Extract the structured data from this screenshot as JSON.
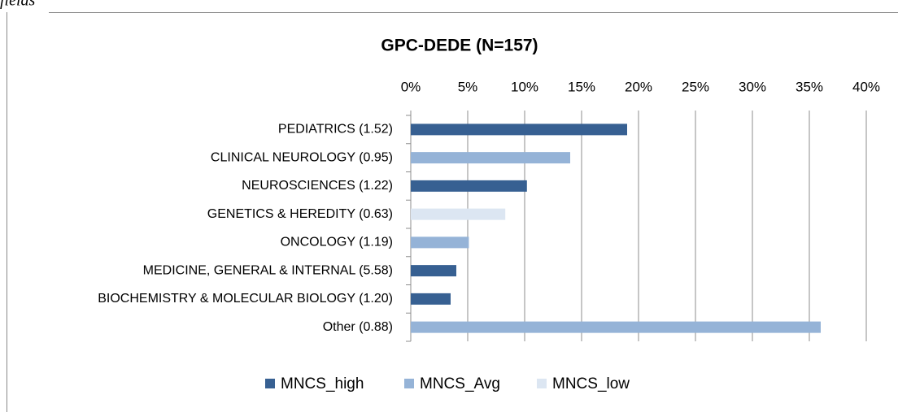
{
  "caption": "fields",
  "chart_data": {
    "type": "hbar",
    "title": "GPC-DEDE (N=157)",
    "categories": [
      "PEDIATRICS (1.52)",
      "CLINICAL NEUROLOGY (0.95)",
      "NEUROSCIENCES (1.22)",
      "GENETICS & HEREDITY (0.63)",
      "ONCOLOGY (1.19)",
      "MEDICINE, GENERAL & INTERNAL (5.58)",
      "BIOCHEMISTRY & MOLECULAR BIOLOGY (1.20)",
      "Other (0.88)"
    ],
    "series": [
      {
        "name": "MNCS_high",
        "color": "#376092",
        "values": [
          19,
          null,
          10.2,
          null,
          null,
          4,
          3.5,
          null
        ]
      },
      {
        "name": "MNCS_Avg",
        "color": "#95b3d7",
        "values": [
          null,
          14,
          null,
          null,
          5.1,
          null,
          null,
          36
        ]
      },
      {
        "name": "MNCS_low",
        "color": "#dce6f2",
        "values": [
          null,
          null,
          null,
          8.3,
          null,
          null,
          null,
          null
        ]
      }
    ],
    "xlim": [
      0,
      40
    ],
    "xticks": [
      {
        "value": 0,
        "label": "0%"
      },
      {
        "value": 5,
        "label": "5%"
      },
      {
        "value": 10,
        "label": "10%"
      },
      {
        "value": 15,
        "label": "15%"
      },
      {
        "value": 20,
        "label": "20%"
      },
      {
        "value": 25,
        "label": "25%"
      },
      {
        "value": 30,
        "label": "30%"
      },
      {
        "value": 35,
        "label": "35%"
      },
      {
        "value": 40,
        "label": "40%"
      }
    ],
    "grid": true,
    "legend": "bottom"
  }
}
